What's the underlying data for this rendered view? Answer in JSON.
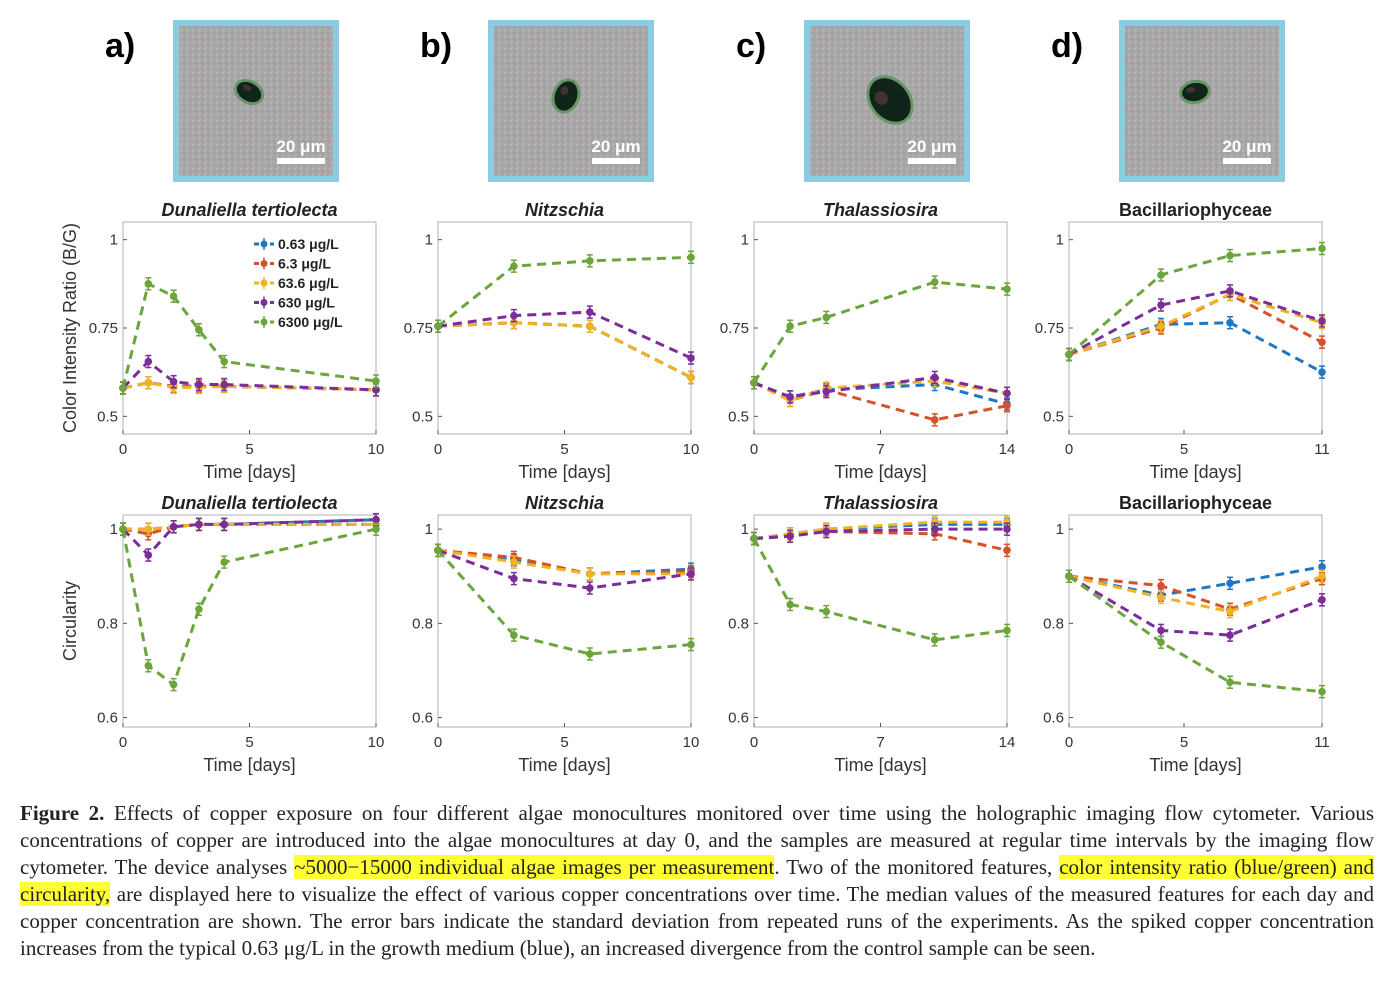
{
  "panels": [
    {
      "label": "a)",
      "scale": "20 μm"
    },
    {
      "label": "b)",
      "scale": "20 μm"
    },
    {
      "label": "c)",
      "scale": "20 μm"
    },
    {
      "label": "d)",
      "scale": "20 μm"
    }
  ],
  "colors": {
    "c0.63": "#1f77c4",
    "c6.3": "#d6522a",
    "c63.6": "#f0b324",
    "c630": "#7b2d9a",
    "c6300": "#6ca53c",
    "frame": "#8ccbe0"
  },
  "legend": [
    "0.63 μg/L",
    "6.3 μg/L",
    "63.6 μg/L",
    "630 μg/L",
    "6300 μg/L"
  ],
  "ylabels": {
    "ratio": "Color Intensity Ratio (B/G)",
    "circ": "Circularity"
  },
  "chart_data": [
    {
      "type": "line",
      "row": "ratio",
      "title": "Dunaliella tertiolecta",
      "xlabel": "Time [days]",
      "ylabel": "Color Intensity Ratio (B/G)",
      "xlim": [
        0,
        10
      ],
      "ylim": [
        0.45,
        1.05
      ],
      "xticks": [
        0,
        5,
        10
      ],
      "yticks": [
        0.5,
        0.75,
        1
      ],
      "ytick_labels": [
        "0.5",
        "0.75",
        "1"
      ],
      "x": [
        0,
        1,
        2,
        3,
        4,
        10
      ],
      "series": [
        {
          "name": "0.63 μg/L",
          "values": [
            0.58,
            0.595,
            0.585,
            0.585,
            0.585,
            0.575
          ]
        },
        {
          "name": "6.3 μg/L",
          "values": [
            0.58,
            0.595,
            0.585,
            0.585,
            0.585,
            0.575
          ]
        },
        {
          "name": "63.6 μg/L",
          "values": [
            0.58,
            0.595,
            0.582,
            0.582,
            0.585,
            0.575
          ]
        },
        {
          "name": "630 μg/L",
          "values": [
            0.58,
            0.655,
            0.598,
            0.59,
            0.59,
            0.575
          ]
        },
        {
          "name": "6300 μg/L",
          "values": [
            0.58,
            0.875,
            0.84,
            0.745,
            0.655,
            0.6
          ]
        }
      ]
    },
    {
      "type": "line",
      "row": "ratio",
      "title": "Nitzschia",
      "xlabel": "Time [days]",
      "ylabel": "",
      "xlim": [
        0,
        10
      ],
      "ylim": [
        0.45,
        1.05
      ],
      "xticks": [
        0,
        5,
        10
      ],
      "yticks": [
        0.5,
        0.75,
        1
      ],
      "ytick_labels": [
        "0.5",
        "0.75",
        "1"
      ],
      "x": [
        0,
        3,
        6,
        10
      ],
      "series": [
        {
          "name": "0.63 μg/L",
          "values": [
            0.755,
            0.765,
            0.755,
            0.61
          ]
        },
        {
          "name": "6.3 μg/L",
          "values": [
            0.755,
            0.765,
            0.755,
            0.61
          ]
        },
        {
          "name": "63.6 μg/L",
          "values": [
            0.755,
            0.765,
            0.755,
            0.61
          ]
        },
        {
          "name": "630 μg/L",
          "values": [
            0.755,
            0.785,
            0.795,
            0.665
          ]
        },
        {
          "name": "6300 μg/L",
          "values": [
            0.755,
            0.925,
            0.94,
            0.95
          ]
        }
      ]
    },
    {
      "type": "line",
      "row": "ratio",
      "title": "Thalassiosira",
      "xlabel": "Time [days]",
      "ylabel": "",
      "xlim": [
        0,
        14
      ],
      "ylim": [
        0.45,
        1.05
      ],
      "xticks": [
        0,
        7,
        14
      ],
      "yticks": [
        0.5,
        0.75,
        1
      ],
      "ytick_labels": [
        "0.5",
        "0.75",
        "1"
      ],
      "x": [
        0,
        2,
        4,
        10,
        14
      ],
      "series": [
        {
          "name": "0.63 μg/L",
          "values": [
            0.595,
            0.555,
            0.575,
            0.59,
            0.535
          ]
        },
        {
          "name": "6.3 μg/L",
          "values": [
            0.595,
            0.545,
            0.575,
            0.49,
            0.53
          ]
        },
        {
          "name": "63.6 μg/L",
          "values": [
            0.595,
            0.545,
            0.58,
            0.6,
            0.565
          ]
        },
        {
          "name": "630 μg/L",
          "values": [
            0.595,
            0.555,
            0.57,
            0.61,
            0.565
          ]
        },
        {
          "name": "6300 μg/L",
          "values": [
            0.595,
            0.755,
            0.78,
            0.88,
            0.86
          ]
        }
      ]
    },
    {
      "type": "line",
      "row": "ratio",
      "title": "Bacillariophyceae",
      "xlabel": "Time [days]",
      "ylabel": "",
      "xlim": [
        0,
        11
      ],
      "ylim": [
        0.45,
        1.05
      ],
      "xticks": [
        0,
        5,
        11
      ],
      "yticks": [
        0.5,
        0.75,
        1
      ],
      "ytick_labels": [
        "0.5",
        "0.75",
        "1"
      ],
      "x": [
        0,
        4,
        7,
        11
      ],
      "series": [
        {
          "name": "0.63 μg/L",
          "values": [
            0.675,
            0.76,
            0.765,
            0.625
          ]
        },
        {
          "name": "6.3 μg/L",
          "values": [
            0.675,
            0.75,
            0.845,
            0.71
          ]
        },
        {
          "name": "63.6 μg/L",
          "values": [
            0.675,
            0.755,
            0.845,
            0.765
          ]
        },
        {
          "name": "630 μg/L",
          "values": [
            0.675,
            0.815,
            0.855,
            0.77
          ]
        },
        {
          "name": "6300 μg/L",
          "values": [
            0.675,
            0.9,
            0.955,
            0.975
          ]
        }
      ]
    },
    {
      "type": "line",
      "row": "circ",
      "title": "Dunaliella tertiolecta",
      "xlabel": "Time [days]",
      "ylabel": "Circularity",
      "xlim": [
        0,
        10
      ],
      "ylim": [
        0.58,
        1.03
      ],
      "xticks": [
        0,
        5,
        10
      ],
      "yticks": [
        0.6,
        0.8,
        1
      ],
      "ytick_labels": [
        "0.6",
        "0.8",
        "1"
      ],
      "x": [
        0,
        1,
        2,
        3,
        4,
        10
      ],
      "series": [
        {
          "name": "0.63 μg/L",
          "values": [
            1.0,
            1.0,
            1.005,
            1.01,
            1.01,
            1.02
          ]
        },
        {
          "name": "6.3 μg/L",
          "values": [
            1.0,
            0.99,
            1.005,
            1.01,
            1.01,
            1.01
          ]
        },
        {
          "name": "63.6 μg/L",
          "values": [
            1.0,
            1.0,
            1.005,
            1.01,
            1.01,
            1.01
          ]
        },
        {
          "name": "630 μg/L",
          "values": [
            1.0,
            0.945,
            1.005,
            1.01,
            1.01,
            1.02
          ]
        },
        {
          "name": "6300 μg/L",
          "values": [
            1.0,
            0.71,
            0.67,
            0.83,
            0.93,
            1.0
          ]
        }
      ]
    },
    {
      "type": "line",
      "row": "circ",
      "title": "Nitzschia",
      "xlabel": "Time [days]",
      "ylabel": "",
      "xlim": [
        0,
        10
      ],
      "ylim": [
        0.58,
        1.03
      ],
      "xticks": [
        0,
        5,
        10
      ],
      "yticks": [
        0.6,
        0.8,
        1
      ],
      "ytick_labels": [
        "0.6",
        "0.8",
        "1"
      ],
      "x": [
        0,
        3,
        6,
        10
      ],
      "series": [
        {
          "name": "0.63 μg/L",
          "values": [
            0.955,
            0.935,
            0.905,
            0.915
          ]
        },
        {
          "name": "6.3 μg/L",
          "values": [
            0.955,
            0.94,
            0.905,
            0.91
          ]
        },
        {
          "name": "63.6 μg/L",
          "values": [
            0.955,
            0.93,
            0.905,
            0.905
          ]
        },
        {
          "name": "630 μg/L",
          "values": [
            0.955,
            0.895,
            0.875,
            0.905
          ]
        },
        {
          "name": "6300 μg/L",
          "values": [
            0.955,
            0.775,
            0.735,
            0.755
          ]
        }
      ]
    },
    {
      "type": "line",
      "row": "circ",
      "title": "Thalassiosira",
      "xlabel": "Time [days]",
      "ylabel": "",
      "xlim": [
        0,
        14
      ],
      "ylim": [
        0.58,
        1.03
      ],
      "xticks": [
        0,
        7,
        14
      ],
      "yticks": [
        0.6,
        0.8,
        1
      ],
      "ytick_labels": [
        "0.6",
        "0.8",
        "1"
      ],
      "x": [
        0,
        2,
        4,
        10,
        14
      ],
      "series": [
        {
          "name": "0.63 μg/L",
          "values": [
            0.98,
            0.99,
            1.0,
            1.01,
            1.01
          ]
        },
        {
          "name": "6.3 μg/L",
          "values": [
            0.98,
            0.985,
            0.995,
            0.99,
            0.955
          ]
        },
        {
          "name": "63.6 μg/L",
          "values": [
            0.98,
            0.99,
            1.0,
            1.015,
            1.015
          ]
        },
        {
          "name": "630 μg/L",
          "values": [
            0.98,
            0.985,
            0.995,
            1.0,
            1.0
          ]
        },
        {
          "name": "6300 μg/L",
          "values": [
            0.98,
            0.84,
            0.825,
            0.765,
            0.785
          ]
        }
      ]
    },
    {
      "type": "line",
      "row": "circ",
      "title": "Bacillariophyceae",
      "xlabel": "Time [days]",
      "ylabel": "",
      "xlim": [
        0,
        11
      ],
      "ylim": [
        0.58,
        1.03
      ],
      "xticks": [
        0,
        5,
        11
      ],
      "yticks": [
        0.6,
        0.8,
        1
      ],
      "ytick_labels": [
        "0.6",
        "0.8",
        "1"
      ],
      "x": [
        0,
        4,
        7,
        11
      ],
      "series": [
        {
          "name": "0.63 μg/L",
          "values": [
            0.9,
            0.86,
            0.885,
            0.92
          ]
        },
        {
          "name": "6.3 μg/L",
          "values": [
            0.9,
            0.88,
            0.83,
            0.895
          ]
        },
        {
          "name": "63.6 μg/L",
          "values": [
            0.9,
            0.855,
            0.825,
            0.9
          ]
        },
        {
          "name": "630 μg/L",
          "values": [
            0.9,
            0.785,
            0.775,
            0.85
          ]
        },
        {
          "name": "6300 μg/L",
          "values": [
            0.9,
            0.76,
            0.675,
            0.655
          ]
        }
      ]
    }
  ],
  "caption": {
    "lead": "Figure 2.",
    "p1": " Effects of copper exposure on four different algae monocultures monitored over time using the holographic imaging flow cytometer. Various concentrations of copper are introduced into the algae monocultures at day 0, and the samples are measured at regular time intervals by the imaging flow cytometer. The device analyses ",
    "h1": "~5000−15000 individual algae images per measurement",
    "p2": ". Two of the monitored features, ",
    "h2": "color intensity ratio (blue/green) and circularity,",
    "p3": " are displayed here to visualize the effect of various copper concentrations over time. The median values of the measured features for each day and copper concentration are shown. The error bars indicate the standard deviation from repeated runs of the experiments. As the spiked copper concentration increases from the typical 0.63 μg/L in the growth medium (blue), an increased divergence from the control sample can be seen."
  }
}
